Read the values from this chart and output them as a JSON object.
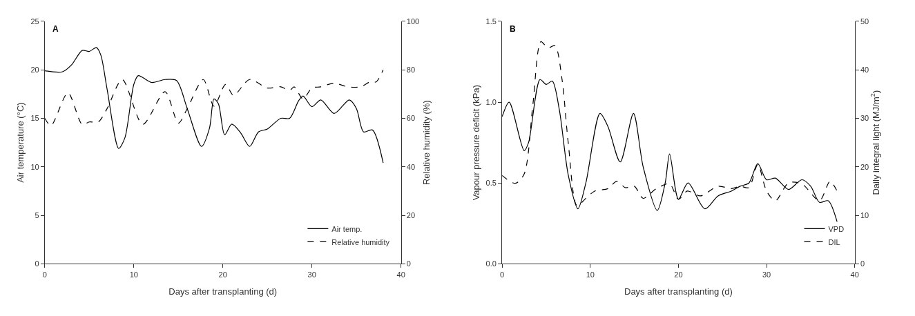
{
  "chart_data": [
    {
      "type": "line",
      "xlabel": "Days after transplanting (d)",
      "ylabel": "Air temperature (°C)",
      "y2label": "Relative humidity (%)",
      "annotations": [
        "A"
      ],
      "xlim": [
        0,
        40
      ],
      "xticks": [
        0,
        10,
        20,
        30,
        40
      ],
      "ylim": [
        0,
        25
      ],
      "yticks": [
        0,
        5,
        10,
        15,
        20,
        25
      ],
      "y2lim": [
        0,
        100
      ],
      "y2ticks": [
        0,
        20,
        40,
        60,
        80,
        100
      ],
      "legend": "bottom right",
      "series": [
        {
          "name": "Air temp.",
          "color": "#000000",
          "line_style": "solid",
          "x": [
            0,
            2,
            3,
            4.2,
            5,
            5.8,
            6.3,
            7,
            8.3,
            9,
            10,
            10.5,
            12,
            13.5,
            14.8,
            16,
            17.6,
            18.5,
            19,
            19.5,
            20.2,
            21,
            22,
            23,
            24,
            25,
            26.5,
            27.5,
            28.5,
            29,
            30,
            31,
            32.5,
            34.2,
            35,
            35.8,
            36.8,
            38
          ],
          "values": [
            19.9,
            19.8,
            20.5,
            22,
            21.9,
            22.3,
            21.5,
            18,
            11.9,
            13,
            18.5,
            19.4,
            18.7,
            19,
            18.9,
            16,
            12.1,
            14,
            17,
            16.5,
            13.3,
            14.4,
            13.5,
            12.1,
            13.6,
            13.9,
            15,
            15,
            16.8,
            17.3,
            16.2,
            16.9,
            15.5,
            16.9,
            16,
            13.6,
            13.8,
            10.4
          ]
        },
        {
          "name": "Relative humidity",
          "color": "#000000",
          "line_style": "dashed",
          "axis": "y2",
          "x": [
            0,
            0.7,
            2.6,
            4.2,
            5,
            6,
            7,
            8.7,
            11,
            13.5,
            15,
            16,
            17.8,
            19,
            20.3,
            21.2,
            23,
            25,
            26.5,
            27.5,
            28,
            29,
            30,
            31,
            32.5,
            34,
            35.5,
            36.5,
            37.2,
            38
          ],
          "values": [
            60,
            57,
            70.5,
            57.5,
            58.5,
            58.5,
            64,
            76,
            57.5,
            71,
            58,
            64,
            76,
            65,
            74,
            69.5,
            76,
            72.5,
            73,
            71.5,
            73,
            68,
            72.5,
            73,
            74.5,
            73,
            73,
            75,
            75,
            80
          ]
        }
      ]
    },
    {
      "type": "line",
      "xlabel": "Days after transplanting (d)",
      "ylabel": "Vapour pressure deficit (kPa)",
      "y2label": "Daily integral light (MJ/m$^{2}$)",
      "annotations": [
        "B"
      ],
      "xlim": [
        0,
        40
      ],
      "xticks": [
        0,
        10,
        20,
        30,
        40
      ],
      "ylim": [
        0,
        1.5
      ],
      "yticks": [
        {
          "value": 0,
          "label": "0.0"
        },
        {
          "value": 0.5,
          "label": "0.5"
        },
        {
          "value": 1,
          "label": "1.0"
        },
        {
          "value": 1.5,
          "label": "1.5"
        }
      ],
      "y2lim": [
        0,
        50
      ],
      "y2ticks": [
        0,
        10,
        20,
        30,
        40,
        50
      ],
      "legend": "bottom right",
      "series": [
        {
          "name": "VPD",
          "color": "#000000",
          "line_style": "solid",
          "x": [
            0,
            0.8,
            2.5,
            3,
            4.3,
            5,
            5.7,
            6.5,
            7.5,
            8.6,
            9.5,
            11.1,
            12,
            13.4,
            14.9,
            16,
            17.6,
            18.5,
            19,
            20,
            21.1,
            23,
            24.5,
            26,
            27,
            28,
            29,
            30,
            31,
            32.5,
            34,
            35,
            36,
            37,
            38
          ],
          "values": [
            0.91,
            1.0,
            0.7,
            0.75,
            1.14,
            1.11,
            1.13,
            0.95,
            0.55,
            0.34,
            0.5,
            0.93,
            0.85,
            0.63,
            0.93,
            0.6,
            0.33,
            0.5,
            0.68,
            0.4,
            0.5,
            0.34,
            0.42,
            0.45,
            0.48,
            0.5,
            0.62,
            0.52,
            0.53,
            0.46,
            0.52,
            0.48,
            0.38,
            0.39,
            0.26
          ]
        },
        {
          "name": "DIL",
          "color": "#000000",
          "line_style": "dashed",
          "axis": "y2",
          "x": [
            0,
            1.5,
            2.5,
            3.5,
            4.4,
            5.2,
            6,
            6.8,
            7.5,
            8.5,
            9.5,
            10.5,
            12,
            13,
            14,
            15,
            16,
            17.5,
            19,
            20,
            21,
            22.5,
            24.5,
            26,
            27,
            28,
            29,
            30,
            31,
            32.5,
            34,
            36,
            37.2,
            38
          ],
          "values": [
            18.2,
            16.6,
            18.5,
            33,
            45.8,
            44.5,
            45,
            38,
            25,
            12,
            13.5,
            15,
            15.5,
            17,
            15.7,
            16,
            13.5,
            15.5,
            16.5,
            13.3,
            15,
            14,
            16,
            15.5,
            16,
            15.7,
            20.5,
            15,
            13,
            16.7,
            16.5,
            13,
            17,
            15
          ]
        }
      ]
    }
  ]
}
